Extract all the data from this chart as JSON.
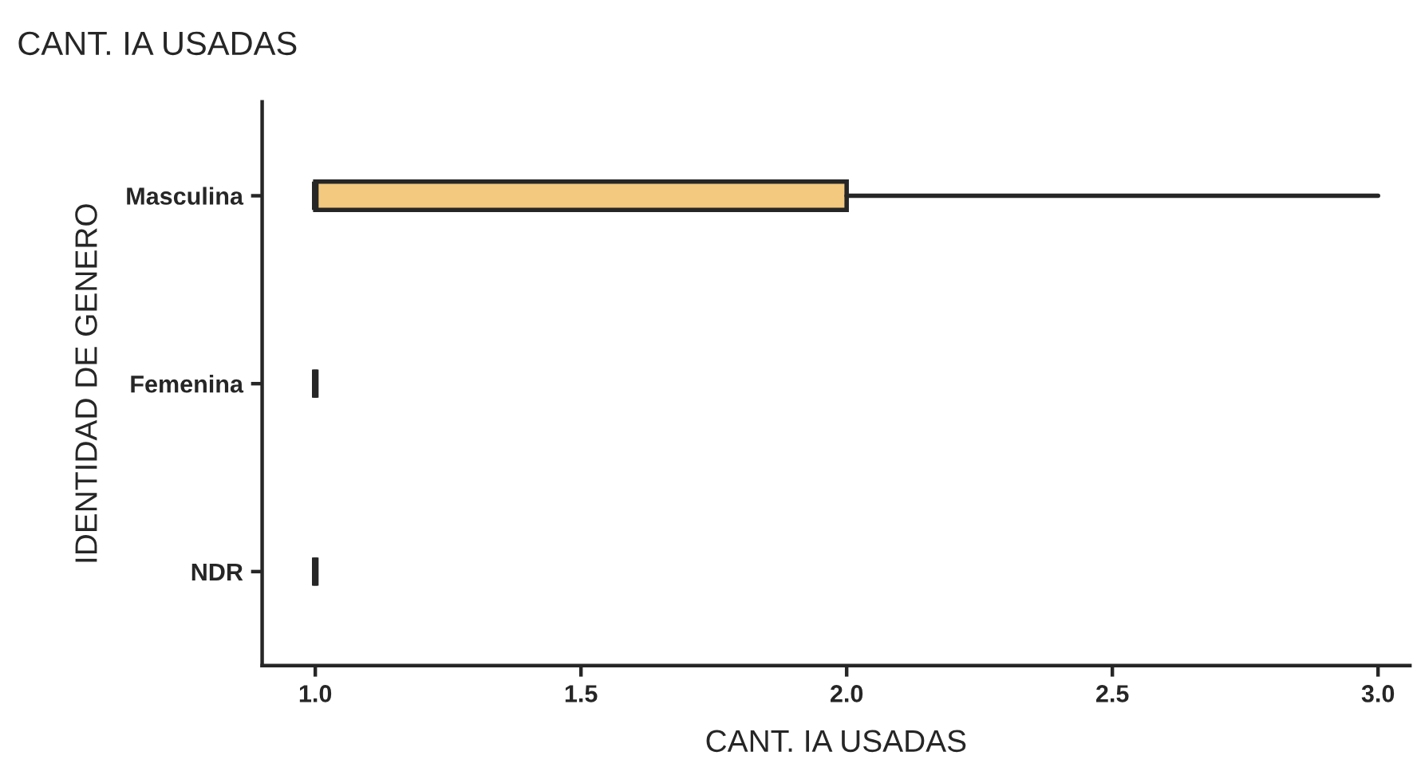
{
  "chart_data": {
    "type": "box",
    "title": "CANT. IA USADAS",
    "xlabel": "CANT. IA USADAS",
    "ylabel": "IDENTIDAD DE GENERO",
    "orientation": "horizontal",
    "categories": [
      "Masculina",
      "Femenina",
      "NDR"
    ],
    "boxes": [
      {
        "low": 1,
        "q1": 1,
        "median": 1,
        "q3": 2,
        "high": 3
      },
      {
        "low": 1,
        "q1": 1,
        "median": 1,
        "q3": 1,
        "high": 1
      },
      {
        "low": 1,
        "q1": 1,
        "median": 1,
        "q3": 1,
        "high": 1
      }
    ],
    "colors": [
      "#f2c97e",
      "#262626",
      "#262626"
    ],
    "xlim": [
      0.9,
      3.06
    ],
    "xticks": [
      {
        "value": 1,
        "label": "1.0"
      },
      {
        "value": 1.5,
        "label": "1.5"
      },
      {
        "value": 2,
        "label": "2.0"
      },
      {
        "value": 2.5,
        "label": "2.5"
      },
      {
        "value": 3,
        "label": "3.0"
      }
    ],
    "grid": false,
    "legend": false
  }
}
